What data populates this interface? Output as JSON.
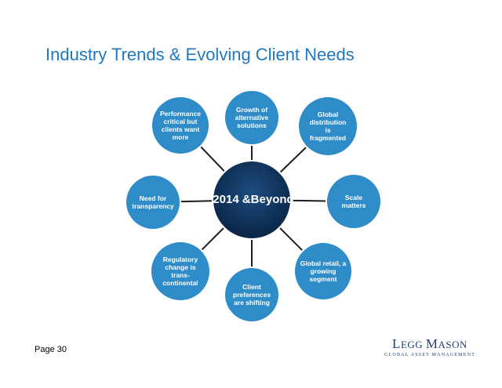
{
  "title": "Industry Trends & Evolving Client Needs",
  "center": {
    "line1": "2014 &",
    "line2": "Beyond"
  },
  "nodes": [
    {
      "id": "growth-alternative",
      "label": "Growth of\nalternative\nsolutions"
    },
    {
      "id": "global-distribution",
      "label": "Global\ndistribution\nis\nfragmented"
    },
    {
      "id": "scale",
      "label": "Scale\nmatters"
    },
    {
      "id": "global-retail",
      "label": "Global retail, a\ngrowing\nsegment"
    },
    {
      "id": "client-preferences",
      "label": "Client\npreferences\nare shifting"
    },
    {
      "id": "regulatory",
      "label": "Regulatory\nchange is\ntrans-\ncontinental"
    },
    {
      "id": "transparency",
      "label": "Need for\ntransparency"
    },
    {
      "id": "performance",
      "label": "Performance\ncritical but\nclients want\nmore"
    }
  ],
  "footer": {
    "page": "Page 30"
  },
  "logo": {
    "name_big_l": "L",
    "name_rest_1": "EGG ",
    "name_big_m": "M",
    "name_rest_2": "ASON",
    "tagline": "GLOBAL ASSET MANAGEMENT"
  },
  "colors": {
    "title": "#1f78c1",
    "node": "#2e8dc8",
    "center": "#0d2d52",
    "connector": "#1c1c1c",
    "logo": "#1a3f73"
  }
}
